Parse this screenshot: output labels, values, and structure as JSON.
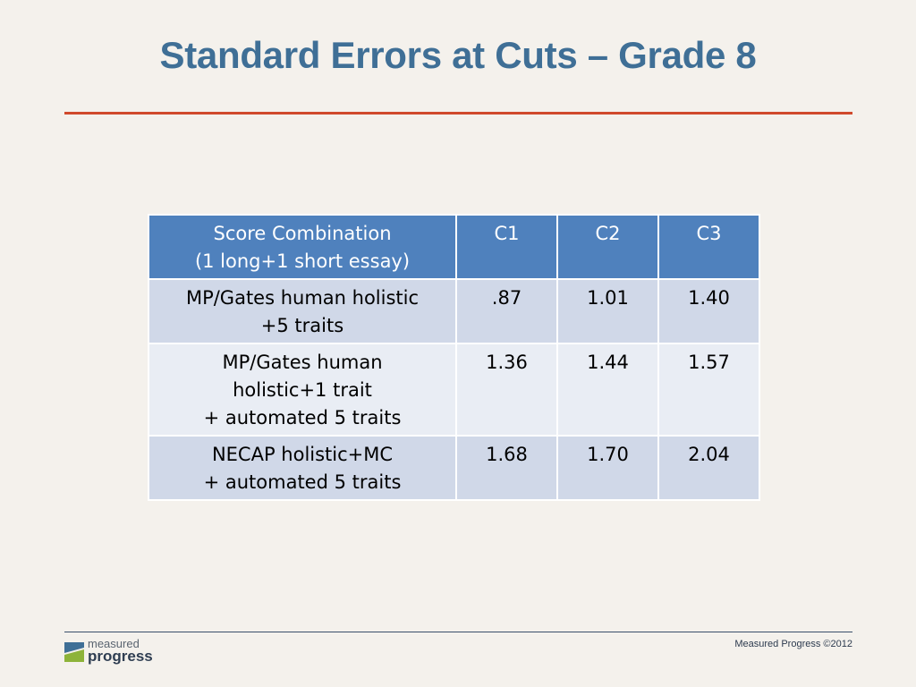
{
  "slide": {
    "title": "Standard Errors at Cuts – Grade 8"
  },
  "table": {
    "headers": [
      [
        "Score Combination",
        "(1 long+1 short essay)"
      ],
      [
        "C1"
      ],
      [
        "C2"
      ],
      [
        "C3"
      ]
    ],
    "rows": [
      {
        "label": [
          "MP/Gates human holistic",
          "+5 traits"
        ],
        "values": [
          ".87",
          "1.01",
          "1.40"
        ]
      },
      {
        "label": [
          "MP/Gates human",
          "holistic+1 trait",
          "+ automated 5 traits"
        ],
        "values": [
          "1.36",
          "1.44",
          "1.57"
        ]
      },
      {
        "label": [
          "NECAP holistic+MC",
          "+ automated 5 traits"
        ],
        "values": [
          "1.68",
          "1.70",
          "2.04"
        ]
      }
    ]
  },
  "footer": {
    "logo_line1": "measured",
    "logo_line2": "progress",
    "copyright": "Measured Progress ©2012"
  },
  "colors": {
    "title": "#3f6f96",
    "title_rule": "#d0492c",
    "header_bg": "#4f81bd",
    "row_odd_bg": "#d0d8e8",
    "row_even_bg": "#e9edf4",
    "background": "#f4f1ec"
  },
  "icons": {
    "logo": "measured-progress-logo-icon"
  }
}
